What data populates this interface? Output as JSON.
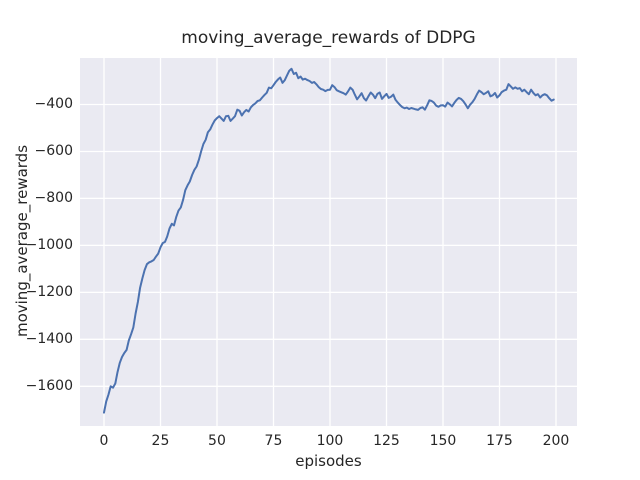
{
  "chart_data": {
    "type": "line",
    "title": "moving_average_rewards of DDPG",
    "xlabel": "episodes",
    "ylabel": "moving_average_rewards",
    "xlim": [
      -10.6,
      209.3
    ],
    "ylim": [
      -1769,
      -202
    ],
    "grid": true,
    "legend": false,
    "x_ticks": [
      {
        "value": 0,
        "label": "0"
      },
      {
        "value": 25,
        "label": "25"
      },
      {
        "value": 50,
        "label": "50"
      },
      {
        "value": 75,
        "label": "75"
      },
      {
        "value": 100,
        "label": "100"
      },
      {
        "value": 125,
        "label": "125"
      },
      {
        "value": 150,
        "label": "150"
      },
      {
        "value": 175,
        "label": "175"
      },
      {
        "value": 200,
        "label": "200"
      }
    ],
    "y_ticks": [
      {
        "value": -400,
        "label": "−400"
      },
      {
        "value": -600,
        "label": "−600"
      },
      {
        "value": -800,
        "label": "−800"
      },
      {
        "value": -1000,
        "label": "−1000"
      },
      {
        "value": -1200,
        "label": "−1200"
      },
      {
        "value": -1400,
        "label": "−1400"
      },
      {
        "value": -1600,
        "label": "−1600"
      }
    ],
    "colors": {
      "figure_bg": "#FFFFFF",
      "plot_bg": "#EAEAF2",
      "grid": "#FFFFFF",
      "line": "#4C72B0",
      "text": "#262626"
    },
    "series": [
      {
        "name": "moving_average_rewards",
        "color": "#4C72B0",
        "points": [
          [
            0,
            -1712
          ],
          [
            1,
            -1665
          ],
          [
            2,
            -1635
          ],
          [
            3,
            -1600
          ],
          [
            4,
            -1606
          ],
          [
            5,
            -1588
          ],
          [
            6,
            -1540
          ],
          [
            7,
            -1500
          ],
          [
            8,
            -1475
          ],
          [
            9,
            -1458
          ],
          [
            10,
            -1445
          ],
          [
            11,
            -1405
          ],
          [
            12,
            -1378
          ],
          [
            13,
            -1350
          ],
          [
            14,
            -1290
          ],
          [
            15,
            -1240
          ],
          [
            16,
            -1180
          ],
          [
            17,
            -1140
          ],
          [
            18,
            -1105
          ],
          [
            19,
            -1080
          ],
          [
            20,
            -1072
          ],
          [
            21,
            -1068
          ],
          [
            22,
            -1062
          ],
          [
            23,
            -1048
          ],
          [
            24,
            -1035
          ],
          [
            25,
            -1008
          ],
          [
            26,
            -990
          ],
          [
            27,
            -985
          ],
          [
            28,
            -962
          ],
          [
            29,
            -928
          ],
          [
            30,
            -908
          ],
          [
            31,
            -915
          ],
          [
            32,
            -878
          ],
          [
            33,
            -852
          ],
          [
            34,
            -838
          ],
          [
            35,
            -806
          ],
          [
            36,
            -765
          ],
          [
            37,
            -744
          ],
          [
            38,
            -728
          ],
          [
            39,
            -700
          ],
          [
            40,
            -678
          ],
          [
            41,
            -664
          ],
          [
            42,
            -635
          ],
          [
            43,
            -600
          ],
          [
            44,
            -568
          ],
          [
            45,
            -550
          ],
          [
            46,
            -518
          ],
          [
            47,
            -506
          ],
          [
            48,
            -486
          ],
          [
            49,
            -468
          ],
          [
            50,
            -458
          ],
          [
            51,
            -450
          ],
          [
            52,
            -460
          ],
          [
            53,
            -470
          ],
          [
            54,
            -450
          ],
          [
            55,
            -448
          ],
          [
            56,
            -470
          ],
          [
            57,
            -460
          ],
          [
            58,
            -450
          ],
          [
            59,
            -422
          ],
          [
            60,
            -427
          ],
          [
            61,
            -447
          ],
          [
            62,
            -433
          ],
          [
            63,
            -423
          ],
          [
            64,
            -430
          ],
          [
            65,
            -412
          ],
          [
            66,
            -402
          ],
          [
            67,
            -395
          ],
          [
            68,
            -385
          ],
          [
            69,
            -382
          ],
          [
            70,
            -370
          ],
          [
            71,
            -360
          ],
          [
            72,
            -350
          ],
          [
            73,
            -328
          ],
          [
            74,
            -331
          ],
          [
            75,
            -318
          ],
          [
            76,
            -304
          ],
          [
            77,
            -293
          ],
          [
            78,
            -285
          ],
          [
            79,
            -308
          ],
          [
            80,
            -296
          ],
          [
            81,
            -276
          ],
          [
            82,
            -256
          ],
          [
            83,
            -248
          ],
          [
            84,
            -270
          ],
          [
            85,
            -265
          ],
          [
            86,
            -288
          ],
          [
            87,
            -281
          ],
          [
            88,
            -294
          ],
          [
            89,
            -290
          ],
          [
            90,
            -296
          ],
          [
            91,
            -300
          ],
          [
            92,
            -308
          ],
          [
            93,
            -304
          ],
          [
            94,
            -314
          ],
          [
            95,
            -326
          ],
          [
            96,
            -334
          ],
          [
            97,
            -337
          ],
          [
            98,
            -343
          ],
          [
            99,
            -338
          ],
          [
            100,
            -337
          ],
          [
            101,
            -318
          ],
          [
            102,
            -326
          ],
          [
            103,
            -339
          ],
          [
            104,
            -344
          ],
          [
            105,
            -348
          ],
          [
            106,
            -352
          ],
          [
            107,
            -358
          ],
          [
            108,
            -344
          ],
          [
            109,
            -328
          ],
          [
            110,
            -337
          ],
          [
            111,
            -358
          ],
          [
            112,
            -378
          ],
          [
            113,
            -365
          ],
          [
            114,
            -352
          ],
          [
            115,
            -373
          ],
          [
            116,
            -383
          ],
          [
            117,
            -365
          ],
          [
            118,
            -349
          ],
          [
            119,
            -358
          ],
          [
            120,
            -373
          ],
          [
            121,
            -355
          ],
          [
            122,
            -349
          ],
          [
            123,
            -376
          ],
          [
            124,
            -365
          ],
          [
            125,
            -355
          ],
          [
            126,
            -372
          ],
          [
            127,
            -367
          ],
          [
            128,
            -358
          ],
          [
            129,
            -380
          ],
          [
            130,
            -392
          ],
          [
            131,
            -402
          ],
          [
            132,
            -411
          ],
          [
            133,
            -416
          ],
          [
            134,
            -413
          ],
          [
            135,
            -419
          ],
          [
            136,
            -415
          ],
          [
            137,
            -418
          ],
          [
            138,
            -421
          ],
          [
            139,
            -423
          ],
          [
            140,
            -415
          ],
          [
            141,
            -412
          ],
          [
            142,
            -422
          ],
          [
            143,
            -403
          ],
          [
            144,
            -382
          ],
          [
            145,
            -385
          ],
          [
            146,
            -392
          ],
          [
            147,
            -405
          ],
          [
            148,
            -410
          ],
          [
            149,
            -404
          ],
          [
            150,
            -403
          ],
          [
            151,
            -409
          ],
          [
            152,
            -392
          ],
          [
            153,
            -399
          ],
          [
            154,
            -408
          ],
          [
            155,
            -393
          ],
          [
            156,
            -381
          ],
          [
            157,
            -372
          ],
          [
            158,
            -376
          ],
          [
            159,
            -386
          ],
          [
            160,
            -400
          ],
          [
            161,
            -416
          ],
          [
            162,
            -401
          ],
          [
            163,
            -390
          ],
          [
            164,
            -376
          ],
          [
            165,
            -357
          ],
          [
            166,
            -341
          ],
          [
            167,
            -347
          ],
          [
            168,
            -356
          ],
          [
            169,
            -351
          ],
          [
            170,
            -344
          ],
          [
            171,
            -365
          ],
          [
            172,
            -361
          ],
          [
            173,
            -351
          ],
          [
            174,
            -370
          ],
          [
            175,
            -361
          ],
          [
            176,
            -347
          ],
          [
            177,
            -341
          ],
          [
            178,
            -337
          ],
          [
            179,
            -313
          ],
          [
            180,
            -323
          ],
          [
            181,
            -333
          ],
          [
            182,
            -327
          ],
          [
            183,
            -333
          ],
          [
            184,
            -330
          ],
          [
            185,
            -344
          ],
          [
            186,
            -337
          ],
          [
            187,
            -347
          ],
          [
            188,
            -356
          ],
          [
            189,
            -337
          ],
          [
            190,
            -351
          ],
          [
            191,
            -361
          ],
          [
            192,
            -356
          ],
          [
            193,
            -370
          ],
          [
            194,
            -361
          ],
          [
            195,
            -356
          ],
          [
            196,
            -361
          ],
          [
            197,
            -373
          ],
          [
            198,
            -384
          ],
          [
            199,
            -379
          ]
        ]
      }
    ]
  }
}
